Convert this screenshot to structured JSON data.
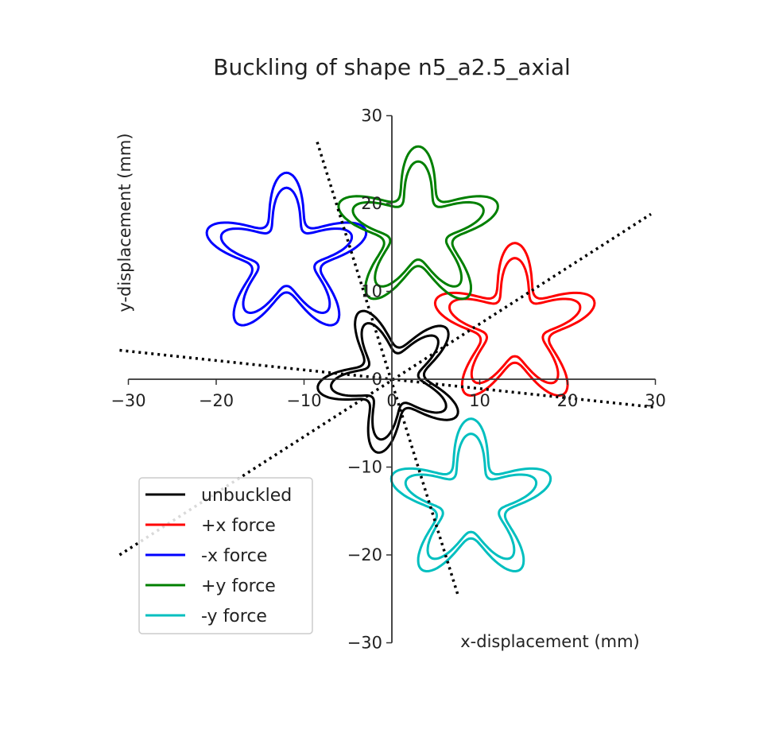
{
  "chart_data": {
    "type": "line",
    "title": "Buckling of shape n5_a2.5_axial",
    "xlabel": "x-displacement (mm)",
    "ylabel": "y-displacement (mm)",
    "xlim": [
      -30,
      30
    ],
    "ylim": [
      -30,
      30
    ],
    "xticks": [
      -30,
      -20,
      -10,
      0,
      10,
      20,
      30
    ],
    "yticks": [
      -30,
      -20,
      -10,
      0,
      10,
      20,
      30
    ],
    "xtick_labels": [
      "−30",
      "−20",
      "−10",
      "0",
      "10",
      "20",
      "30"
    ],
    "ytick_labels": [
      "−30",
      "−20",
      "−10",
      "0",
      "10",
      "20",
      "30"
    ],
    "grid": false,
    "spines": "centered at origin",
    "legend_position": "lower-left",
    "shape": {
      "arms": 5,
      "ring_radii_scale": [
        1.0,
        0.82
      ]
    },
    "series": [
      {
        "name": "unbuckled",
        "color": "#000000",
        "center": [
          0,
          0
        ],
        "radius": 8.5,
        "rotation_deg": 25
      },
      {
        "name": "+x force",
        "color": "#ff0000",
        "center": [
          14,
          6
        ],
        "radius": 9.5,
        "rotation_deg": 0
      },
      {
        "name": "-x force",
        "color": "#0000ff",
        "center": [
          -12,
          14
        ],
        "radius": 9.5,
        "rotation_deg": 0
      },
      {
        "name": "+y force",
        "color": "#008000",
        "center": [
          3,
          17
        ],
        "radius": 9.5,
        "rotation_deg": 0
      },
      {
        "name": "-y force",
        "color": "#00bfbf",
        "center": [
          9,
          -14
        ],
        "radius": 9.5,
        "rotation_deg": 0
      }
    ],
    "dotted_lines": [
      {
        "from": [
          -31,
          3.3
        ],
        "to": [
          30,
          -3.2
        ]
      },
      {
        "from": [
          -31,
          -20
        ],
        "to": [
          29.5,
          18.8
        ]
      },
      {
        "from": [
          -8.5,
          27
        ],
        "to": [
          7.5,
          -24.5
        ]
      }
    ]
  }
}
